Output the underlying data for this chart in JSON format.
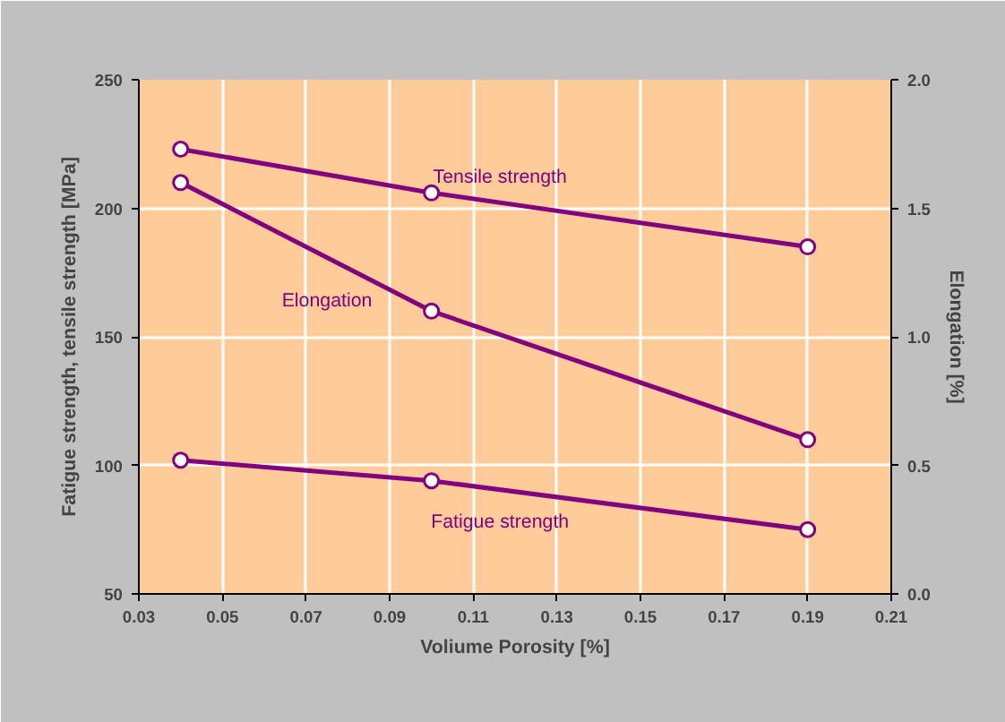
{
  "chart_data": {
    "type": "line",
    "xlabel": "Voliume Porosity [%]",
    "ylabel": "Fatigue strength, tensile strength [MPa]",
    "y2label": "Elongation [%]",
    "x": [
      0.04,
      0.1,
      0.19
    ],
    "series": [
      {
        "name": "Tensile strength",
        "color": "#800080",
        "values": [
          223,
          206,
          185
        ]
      },
      {
        "name": "Elongation",
        "color": "#800080",
        "values": [
          1.6,
          1.1,
          0.6
        ],
        "axis": "y2"
      },
      {
        "name": "Fatigue strength",
        "color": "#800080",
        "values": [
          102,
          94,
          75
        ]
      }
    ],
    "xlim": [
      0.03,
      0.21
    ],
    "xticks": [
      {
        "value": 0.03,
        "label": "0.03"
      },
      {
        "value": 0.05,
        "label": "0.05"
      },
      {
        "value": 0.07,
        "label": "0.07"
      },
      {
        "value": 0.09,
        "label": "0.09"
      },
      {
        "value": 0.11,
        "label": "0.11"
      },
      {
        "value": 0.13,
        "label": "0.13"
      },
      {
        "value": 0.15,
        "label": "0.15"
      },
      {
        "value": 0.17,
        "label": "0.17"
      },
      {
        "value": 0.19,
        "label": "0.19"
      },
      {
        "value": 0.21,
        "label": "0.21"
      }
    ],
    "ylim": [
      50,
      250
    ],
    "yticks": [
      50,
      100,
      150,
      200,
      250
    ],
    "y2lim": [
      0,
      2
    ],
    "y2ticks": [
      {
        "value": 0,
        "label": "0.0"
      },
      {
        "value": 0.5,
        "label": "0.5"
      },
      {
        "value": 1,
        "label": "1.0"
      },
      {
        "value": 1.5,
        "label": "1.5"
      },
      {
        "value": 2,
        "label": "2.0"
      }
    ],
    "grid": true,
    "marker": "circle",
    "line_style": "solid"
  }
}
